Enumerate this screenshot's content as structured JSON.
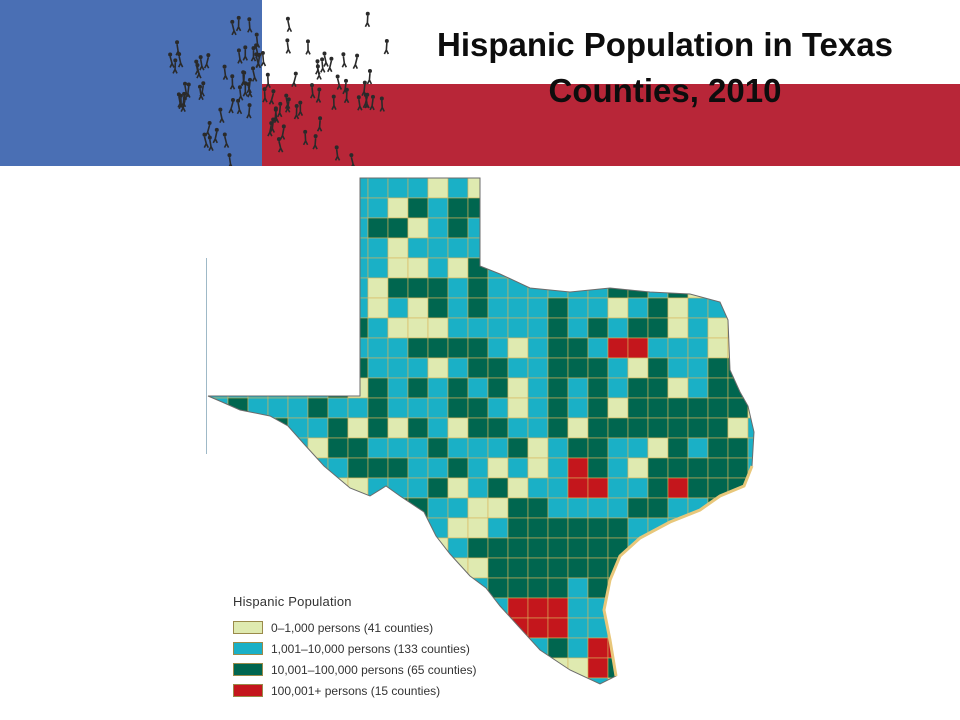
{
  "title": {
    "line1": "Hispanic Population in Texas",
    "line2": "Counties, 2010"
  },
  "colors": {
    "banner_blue": "#4a6fb4",
    "banner_red": "#b82638",
    "crowd": "#2a2a2a",
    "county_border": "#d9b45a",
    "low": "#dfeab0",
    "mid": "#1ab0c6",
    "high": "#00664f",
    "top": "#c4161c"
  },
  "legend": {
    "title": "Hispanic Population",
    "items": [
      {
        "label": "0–1,000 persons (41 counties)",
        "color": "#dfeab0"
      },
      {
        "label": "1,001–10,000 persons (133 counties)",
        "color": "#1ab0c6"
      },
      {
        "label": "10,001–100,000 persons (65 counties)",
        "color": "#00664f"
      },
      {
        "label": "100,001+ persons (15 counties)",
        "color": "#c4161c"
      }
    ]
  }
}
